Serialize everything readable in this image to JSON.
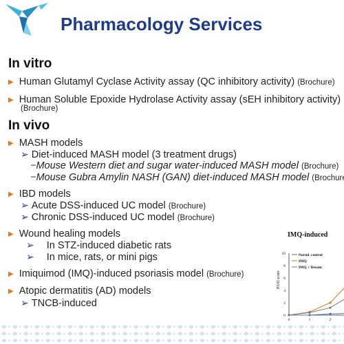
{
  "title": "Pharmacology Services",
  "in_vitro": {
    "heading": "In vitro",
    "items": [
      {
        "text": "Human Glutamyl Cyclase Activity assay (QC inhibitory activity)",
        "tag": "(Brochure)"
      },
      {
        "text": "Human Soluble Epoxide Hydrolase Activity assay (sEH inhibitory activity)",
        "tag": "(Brochure)"
      }
    ]
  },
  "in_vivo": {
    "heading": "In vivo",
    "mash": {
      "label": "MASH models",
      "sub": "Diet-induced MASH model (3 treatment drugs)",
      "dash1": "Mouse Western diet and sugar water-induced MASH model",
      "dash1_tag": "(Brochure)",
      "dash2": "Mouse Gubra Amylin NASH (GAN) diet-induced MASH model",
      "dash2_tag": "(Brochure)"
    },
    "ibd": {
      "label": "IBD models",
      "sub1": "Acute DSS-induced UC model",
      "sub1_tag": "(Brochure)",
      "sub2": "Chronic DSS-induced UC model",
      "sub2_tag": "(Brochure)"
    },
    "wound": {
      "label": "Wound healing models",
      "sub1": "In STZ-induced diabetic rats",
      "sub2": "In mice, rats, or mini pigs"
    },
    "imq": {
      "label": "Imiquimod (IMQ)-induced psoriasis model",
      "tag": "(Brochure)"
    },
    "ad": {
      "label": "Atopic dermatitis (AD) models",
      "sub": "TNCB-induced"
    }
  },
  "chart_data": {
    "type": "line",
    "title": "IMQ-induced",
    "xlabel": "",
    "ylabel": "PASI score",
    "x": [
      0,
      1,
      2,
      3
    ],
    "xticks": [
      "0",
      "1",
      "2",
      "3"
    ],
    "yticks": [
      "0",
      "2",
      "4",
      "6",
      "8",
      "10"
    ],
    "ylim": [
      0,
      10
    ],
    "legend": [
      "Norml. control",
      "IMQ",
      "IMQ + Dexam"
    ],
    "series": [
      {
        "name": "Norml. control",
        "values": [
          0,
          0,
          0.2,
          0.3
        ],
        "color": "#4a6fd0"
      },
      {
        "name": "IMQ",
        "values": [
          0,
          0.5,
          2.0,
          5.5
        ],
        "color": "#e07a1f"
      },
      {
        "name": "IMQ + Dexam",
        "values": [
          0,
          0.4,
          1.2,
          3.2
        ],
        "color": "#7a7a7a"
      }
    ]
  }
}
